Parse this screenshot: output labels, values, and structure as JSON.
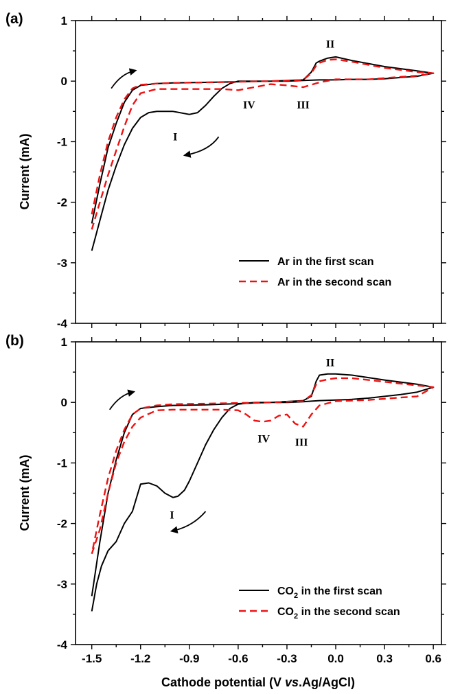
{
  "chart_data": [
    {
      "type": "line",
      "panel_label": "(a)",
      "xlim": [
        -1.6,
        0.65
      ],
      "ylim": [
        -4,
        1
      ],
      "yticks": [
        -4,
        -3,
        -2,
        -1,
        0,
        1
      ],
      "ylabel": "Current (mA)",
      "legend_position": "bottom-right",
      "series": [
        {
          "name": "Ar in the first scan",
          "color": "#000000",
          "dash": "solid",
          "x": [
            -1.5,
            -1.45,
            -1.4,
            -1.35,
            -1.3,
            -1.25,
            -1.2,
            -1.15,
            -1.1,
            -1.0,
            -0.9,
            -0.85,
            -0.8,
            -0.75,
            -0.7,
            -0.65,
            -0.6,
            -0.5,
            -0.4,
            -0.3,
            -0.2,
            -0.1,
            0.0,
            0.1,
            0.2,
            0.3,
            0.4,
            0.5,
            0.6,
            0.5,
            0.3,
            0.1,
            0.0,
            -0.05,
            -0.1,
            -0.12,
            -0.15,
            -0.2,
            -0.4,
            -0.6,
            -0.8,
            -1.0,
            -1.1,
            -1.2,
            -1.25,
            -1.3,
            -1.35,
            -1.4,
            -1.45,
            -1.5
          ],
          "y": [
            -2.8,
            -2.3,
            -1.8,
            -1.4,
            -1.05,
            -0.78,
            -0.6,
            -0.52,
            -0.5,
            -0.5,
            -0.55,
            -0.52,
            -0.4,
            -0.25,
            -0.12,
            -0.04,
            0.0,
            0.0,
            0.0,
            0.0,
            0.01,
            0.02,
            0.02,
            0.03,
            0.03,
            0.04,
            0.06,
            0.08,
            0.13,
            0.17,
            0.24,
            0.34,
            0.4,
            0.38,
            0.33,
            0.3,
            0.15,
            0.02,
            0.0,
            -0.01,
            -0.02,
            -0.03,
            -0.04,
            -0.07,
            -0.15,
            -0.35,
            -0.7,
            -1.1,
            -1.7,
            -2.35
          ]
        },
        {
          "name": "Ar in the second scan",
          "color": "#ee1111",
          "dash": "dashed",
          "x": [
            -1.5,
            -1.45,
            -1.4,
            -1.35,
            -1.3,
            -1.25,
            -1.2,
            -1.1,
            -1.0,
            -0.9,
            -0.8,
            -0.7,
            -0.6,
            -0.5,
            -0.4,
            -0.3,
            -0.2,
            -0.1,
            0.0,
            0.1,
            0.2,
            0.3,
            0.4,
            0.5,
            0.6,
            0.5,
            0.3,
            0.1,
            0.0,
            -0.05,
            -0.1,
            -0.12,
            -0.15,
            -0.2,
            -0.4,
            -0.6,
            -0.8,
            -1.0,
            -1.1,
            -1.2,
            -1.25,
            -1.3,
            -1.35,
            -1.4,
            -1.45,
            -1.5
          ],
          "y": [
            -2.45,
            -2.0,
            -1.55,
            -1.15,
            -0.75,
            -0.4,
            -0.2,
            -0.13,
            -0.13,
            -0.13,
            -0.13,
            -0.13,
            -0.15,
            -0.1,
            -0.05,
            -0.07,
            -0.1,
            -0.02,
            0.03,
            0.03,
            0.03,
            0.05,
            0.07,
            0.09,
            0.13,
            0.15,
            0.22,
            0.32,
            0.36,
            0.35,
            0.3,
            0.26,
            0.13,
            0.02,
            0.0,
            -0.01,
            -0.02,
            -0.03,
            -0.04,
            -0.06,
            -0.12,
            -0.3,
            -0.6,
            -1.0,
            -1.55,
            -2.2
          ]
        }
      ],
      "annotations": [
        {
          "text": "II",
          "x": -0.06,
          "y": 0.55
        },
        {
          "text": "IV",
          "x": -0.57,
          "y": -0.45
        },
        {
          "text": "III",
          "x": -0.24,
          "y": -0.45
        },
        {
          "text": "I",
          "x": -1.0,
          "y": -0.98
        }
      ],
      "arrows": [
        {
          "direction": "forward",
          "x": [
            -1.38,
            -1.32,
            -1.24
          ],
          "y": [
            -0.12,
            0.12,
            0.17
          ]
        },
        {
          "direction": "reverse",
          "x": [
            -0.72,
            -0.78,
            -0.92
          ],
          "y": [
            -0.92,
            -1.15,
            -1.22
          ]
        }
      ]
    },
    {
      "type": "line",
      "panel_label": "(b)",
      "xlim": [
        -1.6,
        0.65
      ],
      "ylim": [
        -4,
        1
      ],
      "xticks": [
        -1.5,
        -1.2,
        -0.9,
        -0.6,
        -0.3,
        0.0,
        0.3,
        0.6
      ],
      "xtick_labels": [
        "-1.5",
        "-1.2",
        "-0.9",
        "-0.6",
        "-0.3",
        "0.0",
        "0.3",
        "0.6"
      ],
      "yticks": [
        -4,
        -3,
        -2,
        -1,
        0,
        1
      ],
      "xlabel_parts": [
        "Cathode potential (V ",
        "vs",
        ".Ag/AgCl)"
      ],
      "ylabel": "Current (mA)",
      "legend_position": "bottom-right",
      "series": [
        {
          "name": "CO₂ in the first scan",
          "name_parts": [
            "CO",
            "2",
            " in the first scan"
          ],
          "color": "#000000",
          "dash": "solid",
          "x": [
            -1.5,
            -1.47,
            -1.44,
            -1.4,
            -1.35,
            -1.3,
            -1.25,
            -1.2,
            -1.15,
            -1.1,
            -1.05,
            -1.0,
            -0.97,
            -0.93,
            -0.9,
            -0.85,
            -0.8,
            -0.75,
            -0.7,
            -0.65,
            -0.6,
            -0.5,
            -0.4,
            -0.3,
            -0.2,
            -0.15,
            -0.1,
            0.0,
            0.1,
            0.2,
            0.3,
            0.4,
            0.5,
            0.6,
            0.5,
            0.3,
            0.1,
            0.0,
            -0.05,
            -0.1,
            -0.12,
            -0.15,
            -0.2,
            -0.4,
            -0.6,
            -0.8,
            -1.0,
            -1.1,
            -1.2,
            -1.25,
            -1.3,
            -1.35,
            -1.4,
            -1.45,
            -1.5
          ],
          "y": [
            -3.45,
            -3.0,
            -2.7,
            -2.45,
            -2.3,
            -2.0,
            -1.8,
            -1.35,
            -1.33,
            -1.38,
            -1.5,
            -1.57,
            -1.55,
            -1.45,
            -1.3,
            -1.0,
            -0.7,
            -0.45,
            -0.25,
            -0.1,
            -0.03,
            0.0,
            0.0,
            0.0,
            0.01,
            0.02,
            0.03,
            0.04,
            0.05,
            0.07,
            0.1,
            0.13,
            0.17,
            0.25,
            0.3,
            0.37,
            0.45,
            0.47,
            0.47,
            0.45,
            0.35,
            0.1,
            0.03,
            0.0,
            -0.02,
            -0.04,
            -0.05,
            -0.07,
            -0.1,
            -0.2,
            -0.5,
            -0.95,
            -1.5,
            -2.3,
            -3.2
          ]
        },
        {
          "name": "CO₂ in the second scan",
          "name_parts": [
            "CO",
            "2",
            " in the second scan"
          ],
          "color": "#ee1111",
          "dash": "dashed",
          "x": [
            -1.5,
            -1.45,
            -1.4,
            -1.35,
            -1.3,
            -1.25,
            -1.2,
            -1.1,
            -1.0,
            -0.9,
            -0.8,
            -0.7,
            -0.6,
            -0.55,
            -0.5,
            -0.45,
            -0.4,
            -0.35,
            -0.3,
            -0.25,
            -0.2,
            -0.15,
            -0.1,
            0.0,
            0.1,
            0.2,
            0.3,
            0.4,
            0.5,
            0.6,
            0.5,
            0.3,
            0.1,
            0.0,
            -0.05,
            -0.1,
            -0.12,
            -0.15,
            -0.2,
            -0.4,
            -0.6,
            -0.8,
            -1.0,
            -1.1,
            -1.2,
            -1.25,
            -1.3,
            -1.35,
            -1.4,
            -1.45,
            -1.5
          ],
          "y": [
            -2.5,
            -2.1,
            -1.5,
            -1.0,
            -0.65,
            -0.4,
            -0.25,
            -0.13,
            -0.12,
            -0.12,
            -0.12,
            -0.12,
            -0.13,
            -0.2,
            -0.3,
            -0.32,
            -0.3,
            -0.22,
            -0.2,
            -0.35,
            -0.4,
            -0.2,
            -0.05,
            0.02,
            0.03,
            0.04,
            0.06,
            0.08,
            0.1,
            0.25,
            0.28,
            0.34,
            0.4,
            0.4,
            0.38,
            0.35,
            0.3,
            0.12,
            0.02,
            0.0,
            -0.01,
            -0.02,
            -0.03,
            -0.05,
            -0.1,
            -0.2,
            -0.45,
            -0.8,
            -1.25,
            -1.85,
            -2.5
          ]
        }
      ],
      "annotations": [
        {
          "text": "II",
          "x": -0.06,
          "y": 0.6
        },
        {
          "text": "IV",
          "x": -0.48,
          "y": -0.66
        },
        {
          "text": "III",
          "x": -0.25,
          "y": -0.72
        },
        {
          "text": "I",
          "x": -1.02,
          "y": -1.92
        }
      ],
      "arrows": [
        {
          "direction": "forward",
          "x": [
            -1.39,
            -1.33,
            -1.25
          ],
          "y": [
            -0.12,
            0.12,
            0.17
          ]
        },
        {
          "direction": "reverse",
          "x": [
            -0.8,
            -0.88,
            -1.0
          ],
          "y": [
            -1.8,
            -2.05,
            -2.12
          ]
        }
      ]
    }
  ]
}
